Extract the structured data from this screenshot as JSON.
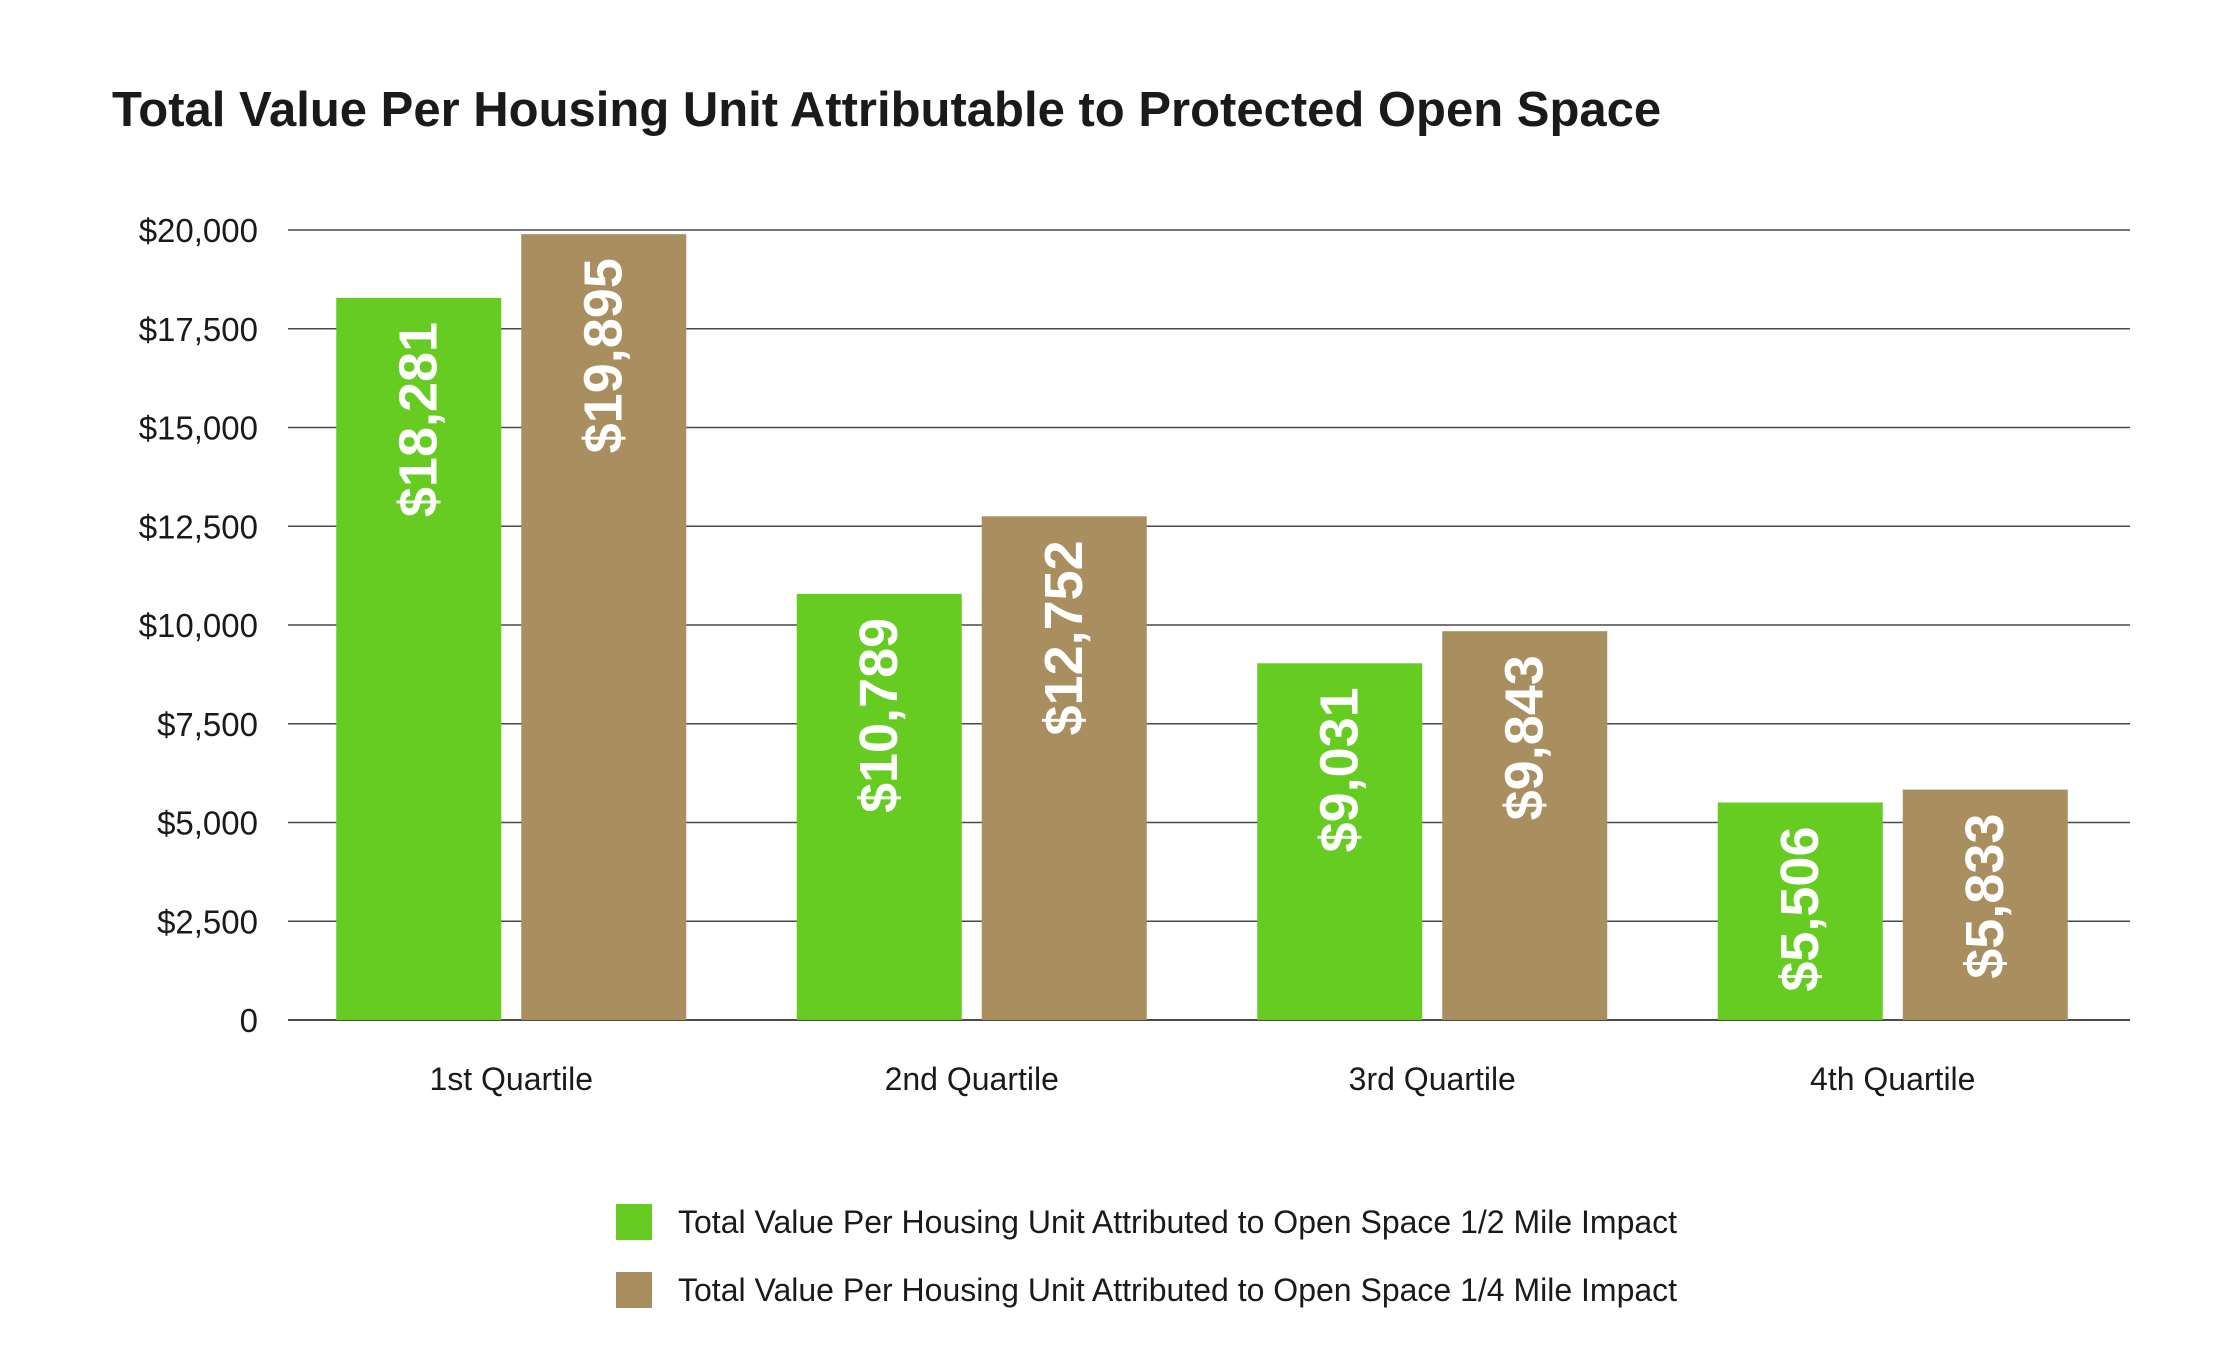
{
  "chart_data": {
    "type": "bar",
    "title": "Total Value Per Housing Unit Attributable to Protected Open Space",
    "categories": [
      "1st Quartile",
      "2nd Quartile",
      "3rd Quartile",
      "4th Quartile"
    ],
    "series": [
      {
        "name": "Total Value Per Housing Unit Attributed to Open Space 1/2 Mile Impact",
        "color": "#66cc22",
        "values": [
          18281,
          10789,
          9031,
          5506
        ],
        "labels": [
          "$18,281",
          "$10,789",
          "$9,031",
          "$5,506"
        ]
      },
      {
        "name": "Total Value Per Housing Unit Attributed to Open Space 1/4 Mile Impact",
        "color": "#a98f5f",
        "values": [
          19895,
          12752,
          9843,
          5833
        ],
        "labels": [
          "$19,895",
          "$12,752",
          "$9,843",
          "$5,833"
        ]
      }
    ],
    "ylim": [
      0,
      20000
    ],
    "yticks": [
      0,
      2500,
      5000,
      7500,
      10000,
      12500,
      15000,
      17500,
      20000
    ],
    "ytick_labels": [
      "0",
      "$2,500",
      "$5,000",
      "$7,500",
      "$10,000",
      "$12,500",
      "$15,000",
      "$17,500",
      "$20,000"
    ],
    "grid": true,
    "legend_position": "bottom-center"
  }
}
